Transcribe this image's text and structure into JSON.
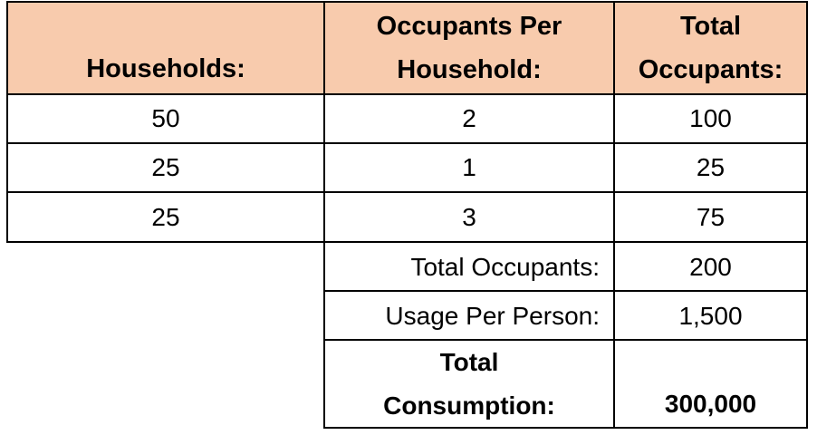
{
  "headers": {
    "households": "Households:",
    "occupants_per_household_line1": "Occupants Per",
    "occupants_per_household_line2": "Household:",
    "total_occupants_line1": "Total",
    "total_occupants_line2": "Occupants:"
  },
  "rows": [
    {
      "households": "50",
      "occupants_per_household": "2",
      "total_occupants": "100"
    },
    {
      "households": "25",
      "occupants_per_household": "1",
      "total_occupants": "25"
    },
    {
      "households": "25",
      "occupants_per_household": "3",
      "total_occupants": "75"
    }
  ],
  "summary": {
    "total_occupants_label": "Total Occupants:",
    "total_occupants_value": "200",
    "usage_per_person_label": "Usage Per Person:",
    "usage_per_person_value": "1,500",
    "total_consumption_label_line1": "Total",
    "total_consumption_label_line2": "Consumption:",
    "total_consumption_value": "300,000"
  },
  "colors": {
    "header_fill": "#f8cbad",
    "border": "#000000"
  }
}
